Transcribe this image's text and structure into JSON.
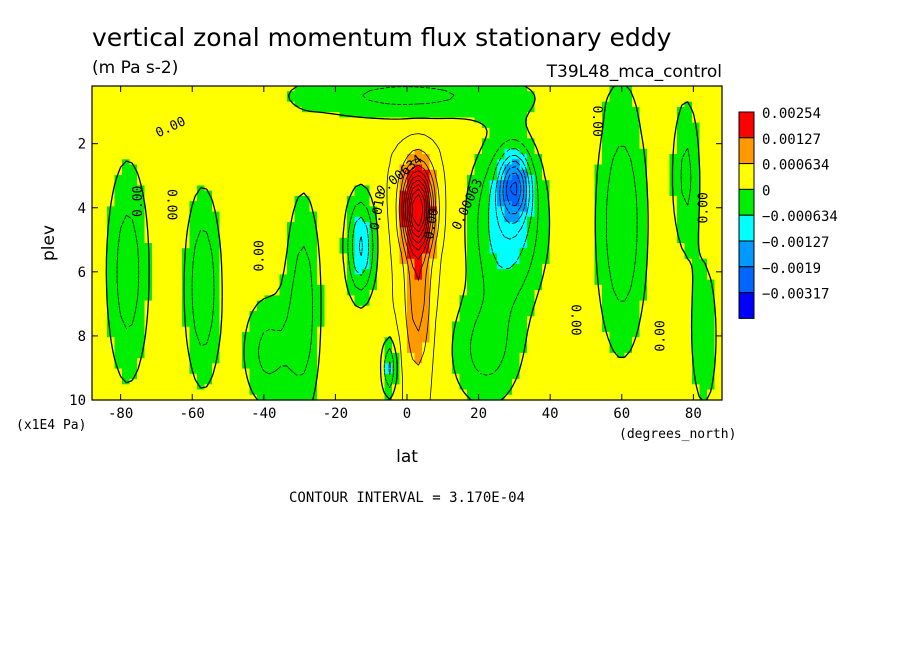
{
  "chart_data": {
    "type": "heatmap",
    "title": "vertical zonal momentum flux stationary eddy",
    "units": "(m Pa s-2)",
    "experiment": "T39L48_mca_control",
    "xlabel": "lat",
    "xunits": "(degrees_north)",
    "ylabel": "plev",
    "yunits": "(x1E4 Pa)",
    "xlim": [
      -88,
      88
    ],
    "ylim": [
      10,
      0.2
    ],
    "x_ticks": [
      -80,
      -60,
      -40,
      -20,
      0,
      20,
      40,
      60,
      80
    ],
    "x_tick_labels": [
      "-80",
      "-60",
      "-40",
      "-20",
      "0",
      "20",
      "40",
      "60",
      "80"
    ],
    "y_ticks": [
      2,
      4,
      6,
      8,
      10
    ],
    "y_tick_labels": [
      "2",
      "4",
      "6",
      "8",
      "10"
    ],
    "contour_interval_text": "CONTOUR INTERVAL = 3.170E-04",
    "colorbar": {
      "levels": [
        0.00254,
        0.00127,
        0.000634,
        0,
        -0.000634,
        -0.00127,
        -0.0019,
        -0.00317
      ],
      "labels": [
        "0.00254",
        "0.00127",
        "0.000634",
        "0",
        "−0.000634",
        "−0.00127",
        "−0.0019",
        "−0.00317"
      ],
      "colors": [
        "#ff0000",
        "#ff9900",
        "#ffff00",
        "#00ee00",
        "#00ffff",
        "#0099ff",
        "#0066ff",
        "#0000ff"
      ]
    },
    "contour_labels": [
      {
        "text": "0.00",
        "lat": -66,
        "p": 1.5,
        "angle": -25
      },
      {
        "text": "0.00",
        "lat": -75,
        "p": 3.8,
        "angle": -90
      },
      {
        "text": "0.00",
        "lat": -66,
        "p": 3.9,
        "angle": 90
      },
      {
        "text": "0.00",
        "lat": -41,
        "p": 5.5,
        "angle": -90
      },
      {
        "text": "0.010",
        "lat": -8,
        "p": 4.1,
        "angle": -80
      },
      {
        "text": "0.00634",
        "lat": -2,
        "p": 3.0,
        "angle": -40
      },
      {
        "text": "0.00",
        "lat": 7,
        "p": 4.5,
        "angle": -80
      },
      {
        "text": "0.00063",
        "lat": 17,
        "p": 3.9,
        "angle": -65
      },
      {
        "text": "0.00",
        "lat": 47,
        "p": 7.5,
        "angle": 90
      },
      {
        "text": "0.00",
        "lat": 53,
        "p": 1.3,
        "angle": 90
      },
      {
        "text": "0.00",
        "lat": 71,
        "p": 8.0,
        "angle": -90
      },
      {
        "text": "0.00",
        "lat": 83,
        "p": 4.0,
        "angle": -90
      }
    ],
    "field": {
      "background": 0.0003,
      "components": [
        {
          "lat": -78,
          "p": 6.0,
          "slat": 6,
          "sp": 3.5,
          "amp": -0.0008
        },
        {
          "lat": -57,
          "p": 6.5,
          "slat": 5,
          "sp": 3.0,
          "amp": -0.0009
        },
        {
          "lat": -29,
          "p": 7.0,
          "slat": 5,
          "sp": 3.5,
          "amp": -0.0008
        },
        {
          "lat": -39,
          "p": 8.5,
          "slat": 7,
          "sp": 1.8,
          "amp": -0.0007
        },
        {
          "lat": 0,
          "p": 0.5,
          "slat": 35,
          "sp": 0.8,
          "amp": -0.0007
        },
        {
          "lat": -13,
          "p": 5.2,
          "slat": 4,
          "sp": 1.6,
          "amp": -0.0013
        },
        {
          "lat": -5,
          "p": 9.0,
          "slat": 2,
          "sp": 0.9,
          "amp": -0.001
        },
        {
          "lat": 3,
          "p": 4.0,
          "slat": 4,
          "sp": 1.2,
          "amp": 0.003
        },
        {
          "lat": 3,
          "p": 6.5,
          "slat": 3.5,
          "sp": 2.5,
          "amp": 0.0009
        },
        {
          "lat": 28,
          "p": 4.5,
          "slat": 10,
          "sp": 2.5,
          "amp": -0.0012
        },
        {
          "lat": 30,
          "p": 3.3,
          "slat": 4,
          "sp": 1.0,
          "amp": -0.0017
        },
        {
          "lat": 22,
          "p": 8.5,
          "slat": 10,
          "sp": 1.8,
          "amp": -0.0007
        },
        {
          "lat": 60,
          "p": 4.5,
          "slat": 7,
          "sp": 4.0,
          "amp": -0.0009
        },
        {
          "lat": 78,
          "p": 3.0,
          "slat": 4,
          "sp": 2.5,
          "amp": -0.0007
        },
        {
          "lat": 83,
          "p": 8.0,
          "slat": 4,
          "sp": 2.5,
          "amp": -0.0006
        }
      ]
    }
  }
}
